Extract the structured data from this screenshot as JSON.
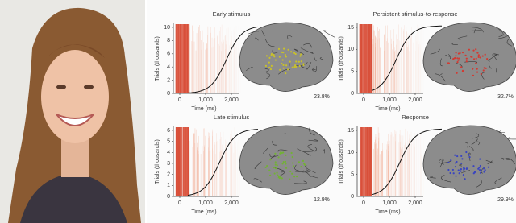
{
  "panels": [
    {
      "title": "Early stimulus",
      "y_label": "Trials (thousands)",
      "y_ticks": [
        "0",
        "2",
        "4",
        "6",
        "8",
        "10"
      ],
      "x_label": "Time (ms)",
      "x_ticks": [
        "0",
        "1,000",
        "2,000"
      ],
      "percent": "23.8%"
    },
    {
      "title": "Persistent stimulus-to-response",
      "y_label": "Trials (thousands)",
      "y_ticks": [
        "0",
        "5",
        "10",
        "15"
      ],
      "x_label": "Time (ms)",
      "x_ticks": [
        "0",
        "1,000",
        "2,000"
      ],
      "percent": "32.7%"
    },
    {
      "title": "Late stimulus",
      "y_label": "Trials (thousands)",
      "y_ticks": [
        "0",
        "1",
        "2",
        "3",
        "4",
        "5",
        "6"
      ],
      "x_label": "Time (ms)",
      "x_ticks": [
        "0",
        "1,000",
        "2,000"
      ],
      "percent": "12.9%"
    },
    {
      "title": "Response",
      "y_label": "Trials (thousands)",
      "y_ticks": [
        "0",
        "5",
        "10",
        "15"
      ],
      "x_label": "Time (ms)",
      "x_ticks": [
        "0",
        "1,000",
        "2,000"
      ],
      "percent": "29.9%"
    }
  ]
}
